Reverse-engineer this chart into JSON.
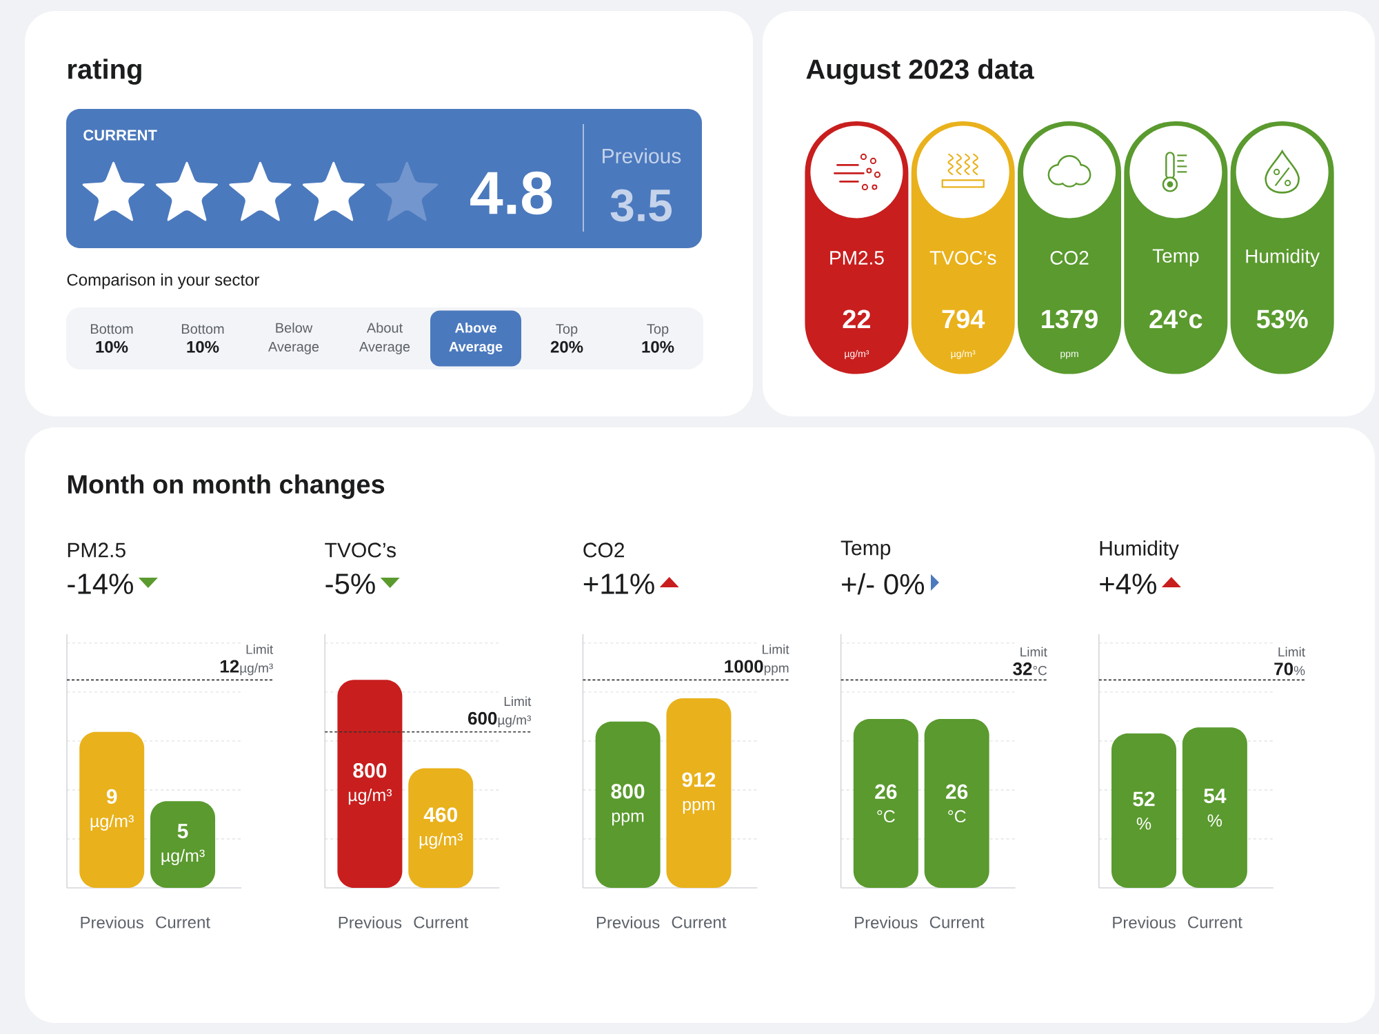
{
  "chart_data": [
    {
      "type": "other",
      "title": "rating",
      "categories": [
        "CURRENT",
        "Previous"
      ],
      "value_labels": [
        "4.8",
        "3.5"
      ]
    },
    {
      "type": "other",
      "title": "Comparison in your sector",
      "categories": [
        "Bottom\n**10%**",
        "Bottom\n**10%**",
        "Below\nAverage",
        "About\nAverage",
        "Above\nAverage",
        "Top\n**20%**",
        "Top\n**10%**"
      ],
      "colors": [
        "#f3f4f7",
        "#f3f4f7",
        "#f3f4f7",
        "#f3f4f7",
        "#4b79bd",
        "#f3f4f7",
        "#f3f4f7"
      ]
    },
    {
      "type": "other",
      "title": "August 2023 data",
      "categories": [
        "PM2.5",
        "TVOC’s",
        "CO2",
        "Temp",
        "Humidity"
      ],
      "value_labels": [
        "22\nµg/m³",
        "794\nµg/m³",
        "1379\nppm",
        "24°c",
        "53%"
      ],
      "colors": [
        "#c81e1e",
        "#e9b11b",
        "#5a9a2e",
        "#5a9a2e",
        "#5a9a2e"
      ]
    },
    {
      "type": "other",
      "title": "Month on month changes"
    },
    {
      "type": "bar",
      "title": "PM2.5",
      "subtitle": "-14%",
      "categories": [
        "Previous",
        "Current"
      ],
      "values": [
        9,
        5
      ],
      "colors": [
        "#e9b11b",
        "#5a9a2e"
      ],
      "value_labels": [
        "9\nµg/m³",
        "5\nµg/m³"
      ],
      "grid": "y",
      "tick_labels": "x",
      "ref_lines": [
        {
          "axis": "y",
          "value": 12,
          "label": "Limit\n**12**µg/m³",
          "color": "#333333",
          "line_style": "dashed"
        }
      ]
    },
    {
      "type": "bar",
      "title": "TVOC’s",
      "subtitle": "-5%",
      "categories": [
        "Previous",
        "Current"
      ],
      "values": [
        800,
        460
      ],
      "colors": [
        "#c81e1e",
        "#e9b11b"
      ],
      "value_labels": [
        "800\nµg/m³",
        "460\nµg/m³"
      ],
      "grid": "y",
      "tick_labels": "x",
      "ref_lines": [
        {
          "axis": "y",
          "value": 600,
          "label": "Limit\n**600**µg/m³",
          "color": "#333333",
          "line_style": "dashed"
        }
      ]
    },
    {
      "type": "bar",
      "title": "CO2",
      "subtitle": "+11%",
      "categories": [
        "Previous",
        "Current"
      ],
      "values": [
        800,
        912
      ],
      "colors": [
        "#5a9a2e",
        "#e9b11b"
      ],
      "value_labels": [
        "800\nppm",
        "912\nppm"
      ],
      "grid": "y",
      "tick_labels": "x",
      "ref_lines": [
        {
          "axis": "y",
          "value": 1000,
          "label": "Limit\n**1000**ppm",
          "color": "#333333",
          "line_style": "dashed"
        }
      ]
    },
    {
      "type": "bar",
      "title": "Temp",
      "subtitle": "+/- 0%",
      "categories": [
        "Previous",
        "Current"
      ],
      "values": [
        26,
        26
      ],
      "colors": [
        "#5a9a2e",
        "#5a9a2e"
      ],
      "value_labels": [
        "26\n°C",
        "26\n°C"
      ],
      "grid": "y",
      "tick_labels": "x",
      "ref_lines": [
        {
          "axis": "y",
          "value": 32,
          "label": "Limit\n**32**°C",
          "color": "#333333",
          "line_style": "dashed"
        }
      ]
    },
    {
      "type": "bar",
      "title": "Humidity",
      "subtitle": "+4%",
      "categories": [
        "Previous",
        "Current"
      ],
      "values": [
        52,
        54
      ],
      "colors": [
        "#5a9a2e",
        "#5a9a2e"
      ],
      "value_labels": [
        "52\n%",
        "54\n%"
      ],
      "grid": "y",
      "tick_labels": "x",
      "ref_lines": [
        {
          "axis": "y",
          "value": 70,
          "label": "Limit\n**70**%",
          "color": "#333333",
          "line_style": "dashed"
        }
      ]
    }
  ]
}
